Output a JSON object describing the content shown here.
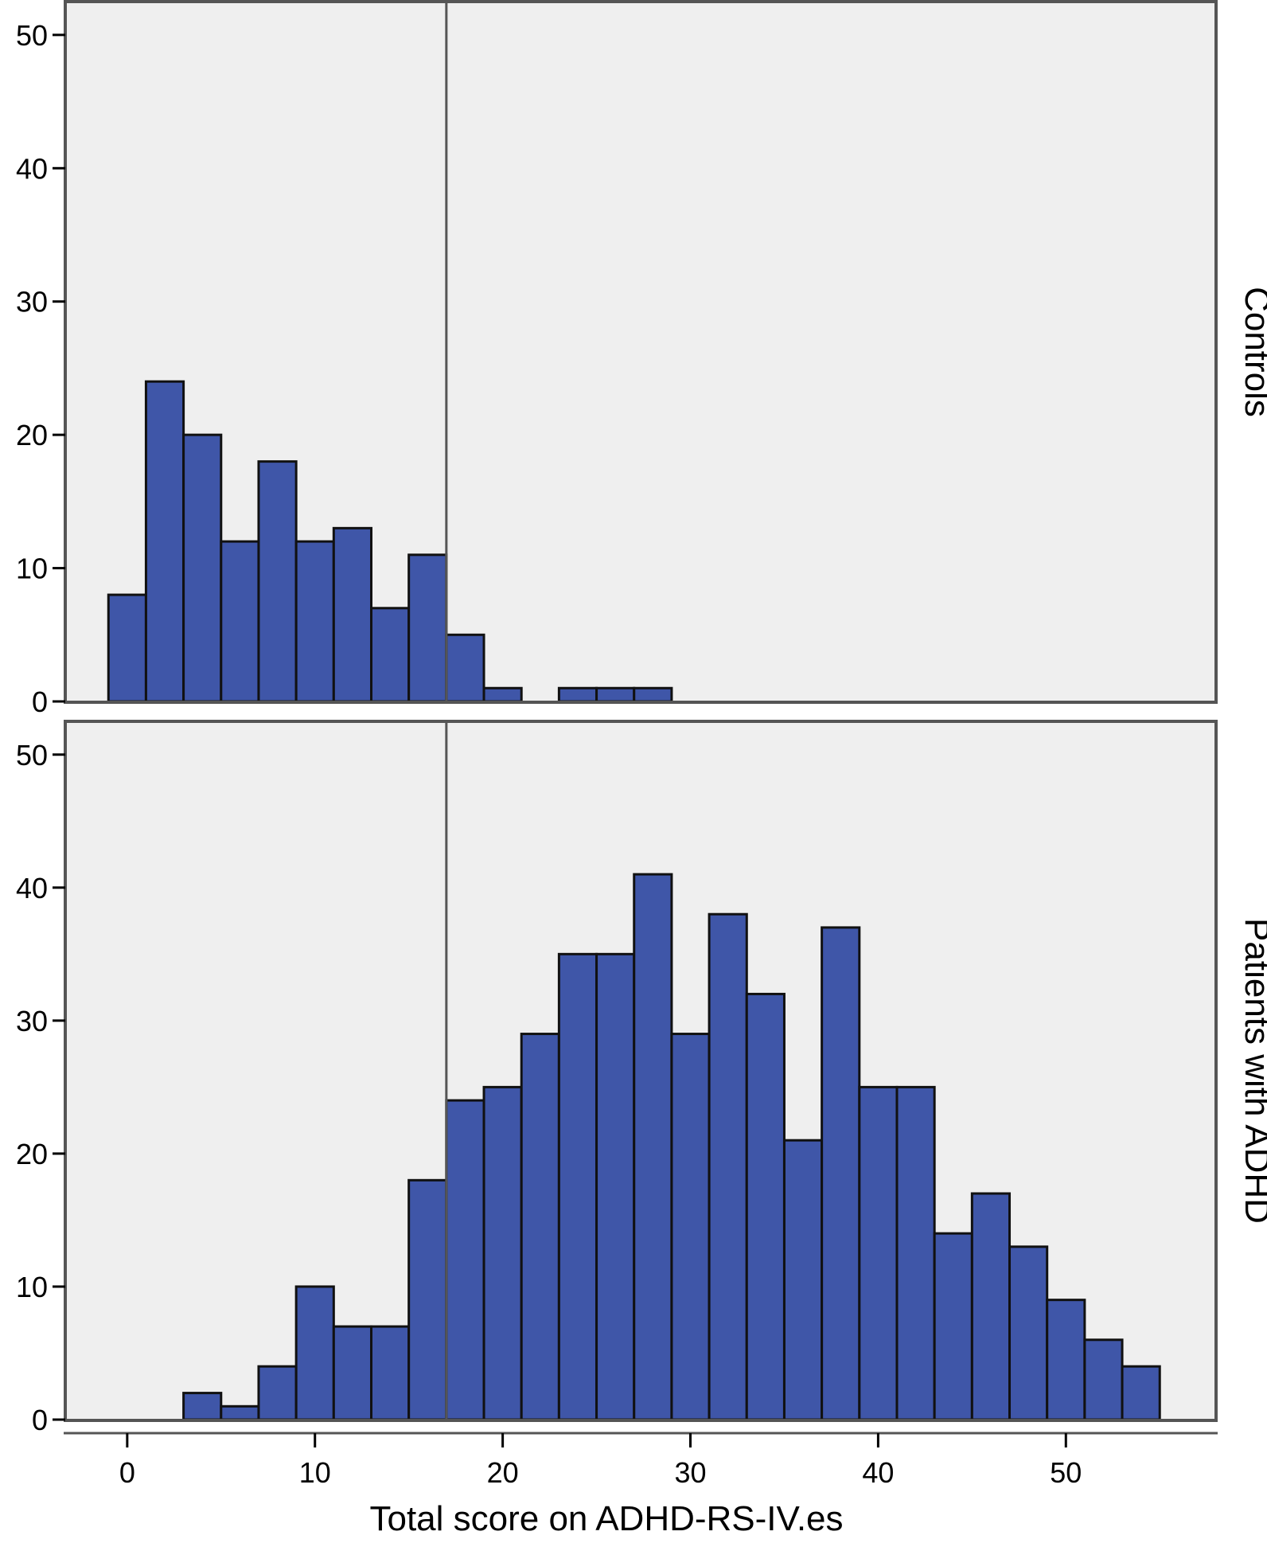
{
  "chart_data": {
    "type": "bar",
    "xlabel": "Total score on ADHD-RS-IV.es",
    "ylabel": "",
    "xlim": [
      -3.3,
      58
    ],
    "ylim": [
      0,
      52.5
    ],
    "xticks": [
      0,
      10,
      20,
      30,
      40,
      50
    ],
    "yticks": [
      0,
      10,
      20,
      30,
      40,
      50
    ],
    "bin_width": 2,
    "cutoff_line_x": 17,
    "colors": {
      "bar_fill": "#3f56a8",
      "bar_stroke": "#111111",
      "panel_bg": "#efefef",
      "panel_border": "#555555"
    },
    "panels": [
      {
        "label": "Controls",
        "bin_left_edges": [
          -1,
          1,
          3,
          5,
          7,
          9,
          11,
          13,
          15,
          17,
          19,
          21,
          23,
          25,
          27
        ],
        "counts": [
          8,
          24,
          20,
          12,
          18,
          12,
          13,
          7,
          11,
          5,
          1,
          0,
          1,
          1,
          1
        ]
      },
      {
        "label": "Patients with ADHD",
        "bin_left_edges": [
          3,
          5,
          7,
          9,
          11,
          13,
          15,
          17,
          19,
          21,
          23,
          25,
          27,
          29,
          31,
          33,
          35,
          37,
          39,
          41,
          43,
          45,
          47,
          49,
          51,
          53
        ],
        "counts": [
          2,
          1,
          4,
          10,
          7,
          7,
          18,
          24,
          25,
          29,
          35,
          35,
          41,
          29,
          38,
          32,
          21,
          37,
          25,
          25,
          14,
          17,
          13,
          9,
          6,
          4
        ]
      }
    ]
  }
}
